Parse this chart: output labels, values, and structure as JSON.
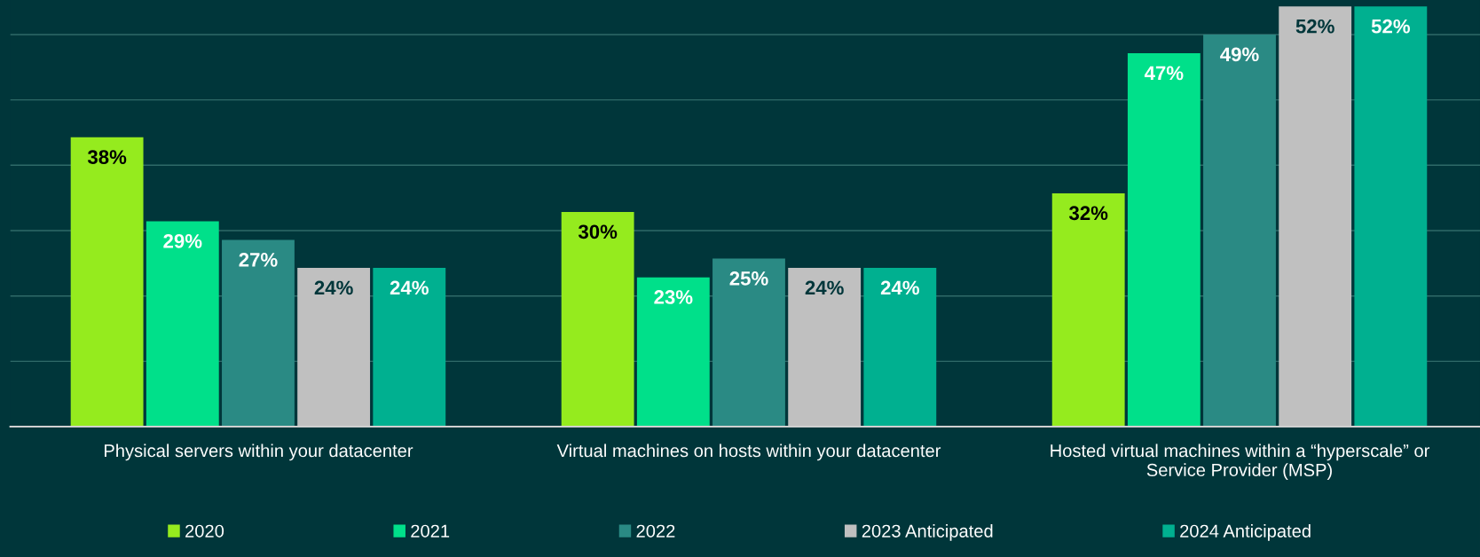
{
  "chart_data": {
    "type": "bar",
    "categories": [
      "Physical servers within your datacenter",
      "Virtual machines on hosts within your datacenter",
      "Hosted virtual machines within a “hyperscale” or\nService Provider (MSP)"
    ],
    "series": [
      {
        "name": "2020",
        "color": "#95eb1e",
        "values": [
          38,
          30,
          32
        ],
        "value_labels": [
          "38%",
          "30%",
          "32%"
        ]
      },
      {
        "name": "2021",
        "color": "#00e08a",
        "values": [
          29,
          23,
          47
        ],
        "value_labels": [
          "29%",
          "23%",
          "47%"
        ]
      },
      {
        "name": "2022",
        "color": "#2a8a84",
        "values": [
          27,
          25,
          49
        ],
        "value_labels": [
          "27%",
          "25%",
          "49%"
        ]
      },
      {
        "name": "2023 Anticipated",
        "color": "#c0c0c0",
        "values": [
          24,
          24,
          52
        ],
        "value_labels": [
          "24%",
          "24%",
          "52%"
        ]
      },
      {
        "name": "2024 Anticipated",
        "color": "#00b090",
        "values": [
          24,
          24,
          52
        ],
        "value_labels": [
          "24%",
          "24%",
          "52%"
        ]
      }
    ],
    "ylim": [
      7,
      52.7
    ],
    "yticks": [
      {
        "value": 14,
        "label": null
      },
      {
        "value": 21,
        "label": null
      },
      {
        "value": 28,
        "label": null
      },
      {
        "value": 35,
        "label": null
      },
      {
        "value": 42,
        "label": null
      },
      {
        "value": 49,
        "label": null
      }
    ],
    "grid": "y",
    "legend": "bottom"
  }
}
